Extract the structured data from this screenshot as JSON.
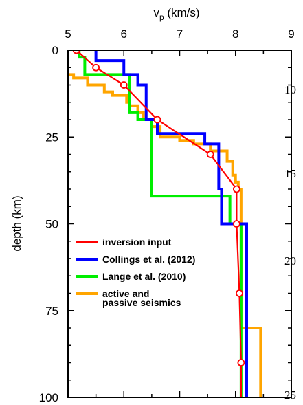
{
  "chart_data": {
    "type": "line",
    "xlabel_main": "v",
    "xlabel_sub": "p",
    "xlabel_unit": " (km/s)",
    "ylabel": "depth (km)",
    "xlim": [
      5,
      9
    ],
    "ylim": [
      0,
      100
    ],
    "x_ticks": [
      "5",
      "6",
      "7",
      "8",
      "9"
    ],
    "y_ticks": [
      "0",
      "25",
      "50",
      "75",
      "100"
    ],
    "legend_position": "lower-left",
    "series": [
      {
        "name": "inversion input",
        "color": "#ff0000",
        "style": "line-with-circles",
        "points": [
          [
            5.15,
            0
          ],
          [
            5.5,
            5
          ],
          [
            6.0,
            10
          ],
          [
            6.6,
            20
          ],
          [
            7.55,
            30
          ],
          [
            8.02,
            40
          ],
          [
            8.02,
            50
          ],
          [
            8.07,
            70
          ],
          [
            8.1,
            90
          ],
          [
            8.1,
            100
          ]
        ]
      },
      {
        "name": "Collings et al. (2012)",
        "color": "#0000ff",
        "style": "step",
        "points": [
          [
            5.5,
            0
          ],
          [
            5.5,
            3
          ],
          [
            6.0,
            3
          ],
          [
            6.0,
            7
          ],
          [
            6.25,
            7
          ],
          [
            6.25,
            10
          ],
          [
            6.4,
            10
          ],
          [
            6.4,
            20
          ],
          [
            6.6,
            20
          ],
          [
            6.6,
            24
          ],
          [
            7.45,
            24
          ],
          [
            7.45,
            27
          ],
          [
            7.7,
            27
          ],
          [
            7.7,
            40
          ],
          [
            7.75,
            40
          ],
          [
            7.75,
            50
          ],
          [
            8.2,
            50
          ],
          [
            8.2,
            100
          ]
        ]
      },
      {
        "name": "Lange et al. (2010)",
        "color": "#00ee00",
        "style": "step",
        "points": [
          [
            5.2,
            0
          ],
          [
            5.2,
            2
          ],
          [
            5.3,
            2
          ],
          [
            5.3,
            7
          ],
          [
            6.1,
            7
          ],
          [
            6.1,
            18
          ],
          [
            6.25,
            18
          ],
          [
            6.25,
            20
          ],
          [
            6.5,
            20
          ],
          [
            6.5,
            42
          ],
          [
            7.9,
            42
          ],
          [
            7.9,
            50
          ],
          [
            8.1,
            50
          ],
          [
            8.1,
            100
          ]
        ]
      },
      {
        "name": "active and passive seismics",
        "color": "#ffa500",
        "style": "step",
        "points": [
          [
            5.0,
            7
          ],
          [
            5.1,
            7
          ],
          [
            5.1,
            8
          ],
          [
            5.35,
            8
          ],
          [
            5.35,
            10
          ],
          [
            5.65,
            10
          ],
          [
            5.65,
            12
          ],
          [
            5.8,
            12
          ],
          [
            5.8,
            13
          ],
          [
            6.05,
            13
          ],
          [
            6.05,
            15
          ],
          [
            6.1,
            15
          ],
          [
            6.1,
            16
          ],
          [
            6.25,
            16
          ],
          [
            6.25,
            18
          ],
          [
            6.35,
            18
          ],
          [
            6.35,
            20
          ],
          [
            6.5,
            20
          ],
          [
            6.5,
            22
          ],
          [
            6.65,
            22
          ],
          [
            6.65,
            25
          ],
          [
            7.0,
            25
          ],
          [
            7.0,
            26
          ],
          [
            7.25,
            26
          ],
          [
            7.25,
            27
          ],
          [
            7.55,
            27
          ],
          [
            7.55,
            29
          ],
          [
            7.85,
            29
          ],
          [
            7.85,
            32
          ],
          [
            7.95,
            32
          ],
          [
            7.95,
            36
          ],
          [
            8.0,
            36
          ],
          [
            8.0,
            38
          ],
          [
            8.05,
            38
          ],
          [
            8.05,
            40
          ],
          [
            8.1,
            40
          ],
          [
            8.1,
            80
          ],
          [
            8.45,
            80
          ],
          [
            8.45,
            100
          ]
        ]
      }
    ],
    "legend_lines": [
      [
        "inversion input"
      ],
      [
        "Collings et al. (2012)"
      ],
      [
        "Lange et al. (2010)"
      ],
      [
        "active and",
        "passive seismics"
      ]
    ]
  },
  "background_ticks": [
    "10",
    "15",
    "20",
    "25"
  ]
}
